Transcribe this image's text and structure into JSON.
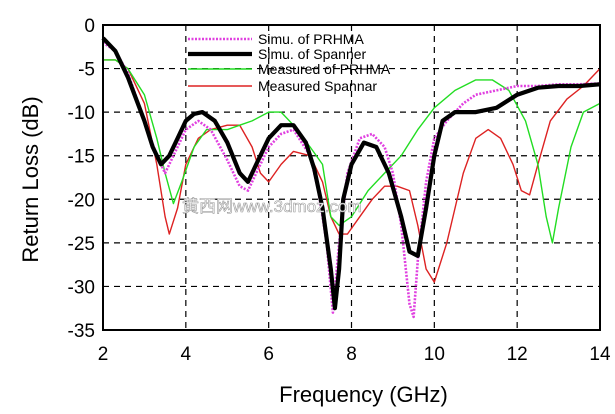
{
  "chart_data": {
    "type": "line",
    "xlabel": "Frequency (GHz)",
    "ylabel": "Return Loss (dB)",
    "xlim": [
      2,
      14
    ],
    "ylim": [
      -35,
      0
    ],
    "xticks": [
      2,
      4,
      6,
      8,
      10,
      12,
      14
    ],
    "yticks": [
      0,
      -5,
      -10,
      -15,
      -20,
      -25,
      -30,
      -35
    ],
    "grid": true,
    "legend_position": "top-center",
    "watermark": "黄西网www.3dmoz.com",
    "series": [
      {
        "name": "Simu. of PRHMA",
        "color": "#e040e0",
        "style": "dotted",
        "x": [
          2.0,
          2.3,
          2.6,
          3.0,
          3.3,
          3.5,
          3.7,
          4.0,
          4.3,
          4.6,
          5.0,
          5.3,
          5.5,
          5.7,
          6.0,
          6.3,
          6.6,
          7.0,
          7.2,
          7.4,
          7.55,
          7.7,
          7.9,
          8.2,
          8.5,
          8.8,
          9.0,
          9.2,
          9.4,
          9.5,
          9.6,
          9.8,
          10.0,
          10.3,
          10.7,
          11.0,
          11.5,
          12.0,
          12.5,
          13.0,
          13.5,
          14.0
        ],
        "y": [
          -2,
          -3,
          -5.5,
          -11,
          -15,
          -17,
          -15,
          -12,
          -11,
          -12,
          -15.5,
          -18.5,
          -19,
          -17,
          -14,
          -12.5,
          -12,
          -15,
          -19,
          -25,
          -33,
          -25,
          -17,
          -13,
          -12.5,
          -14,
          -17,
          -23,
          -32,
          -33.5,
          -27,
          -18,
          -13,
          -11,
          -9,
          -8,
          -7.5,
          -7,
          -7,
          -6.8,
          -6.8,
          -6.7
        ]
      },
      {
        "name": "Simu. of Spanner",
        "color": "#000000",
        "style": "solid",
        "x": [
          2.0,
          2.3,
          2.6,
          3.0,
          3.2,
          3.4,
          3.6,
          3.8,
          4.0,
          4.2,
          4.4,
          4.7,
          5.0,
          5.3,
          5.5,
          5.7,
          6.0,
          6.3,
          6.6,
          6.9,
          7.1,
          7.3,
          7.5,
          7.6,
          7.7,
          7.8,
          8.0,
          8.3,
          8.6,
          8.9,
          9.2,
          9.4,
          9.6,
          9.8,
          10.0,
          10.2,
          10.5,
          11.0,
          11.5,
          12.0,
          12.5,
          13.0,
          13.5,
          14.0
        ],
        "y": [
          -1.5,
          -3,
          -6,
          -11,
          -14,
          -16,
          -15,
          -13,
          -11,
          -10.2,
          -10,
          -11,
          -13.5,
          -17,
          -18,
          -16,
          -13,
          -11.5,
          -11.5,
          -13.5,
          -16.5,
          -21,
          -28,
          -32.5,
          -28,
          -20,
          -16,
          -13.5,
          -14,
          -17,
          -22,
          -26,
          -26.5,
          -21,
          -15,
          -11,
          -10,
          -10,
          -9.5,
          -8,
          -7.2,
          -7,
          -7,
          -6.8
        ]
      },
      {
        "name": "Measured of PRHMA",
        "color": "#22dd22",
        "style": "solid",
        "x": [
          2.0,
          2.3,
          2.6,
          3.0,
          3.3,
          3.5,
          3.7,
          3.9,
          4.2,
          4.5,
          4.8,
          5.0,
          5.3,
          5.6,
          6.0,
          6.3,
          6.6,
          7.0,
          7.3,
          7.5,
          7.7,
          8.0,
          8.4,
          8.8,
          9.2,
          9.6,
          10.0,
          10.5,
          11.0,
          11.4,
          11.8,
          12.2,
          12.5,
          12.7,
          12.85,
          13.0,
          13.3,
          13.6,
          14.0
        ],
        "y": [
          -4,
          -4,
          -5,
          -8,
          -13,
          -17,
          -20.5,
          -18,
          -14,
          -12,
          -12,
          -12,
          -11.5,
          -11,
          -10,
          -10,
          -11.5,
          -14,
          -16,
          -22,
          -23,
          -22,
          -19,
          -17,
          -15,
          -12,
          -9.5,
          -7.5,
          -6.3,
          -6.3,
          -7.5,
          -11,
          -16,
          -22,
          -25,
          -21,
          -14,
          -10,
          -9
        ]
      },
      {
        "name": "Measured Spannar",
        "color": "#dd2222",
        "style": "solid",
        "x": [
          2.0,
          2.3,
          2.6,
          3.0,
          3.3,
          3.5,
          3.6,
          3.8,
          4.0,
          4.3,
          4.6,
          5.0,
          5.3,
          5.6,
          5.8,
          6.0,
          6.3,
          6.6,
          7.0,
          7.3,
          7.5,
          7.7,
          7.9,
          8.2,
          8.5,
          8.8,
          9.1,
          9.4,
          9.6,
          9.8,
          10.0,
          10.3,
          10.7,
          11.0,
          11.3,
          11.6,
          11.9,
          12.1,
          12.3,
          12.5,
          12.8,
          13.2,
          13.6,
          14.0
        ],
        "y": [
          -4,
          -4,
          -5,
          -9,
          -16,
          -22,
          -24,
          -21,
          -16,
          -13,
          -12,
          -11.5,
          -11.5,
          -14,
          -17,
          -18,
          -16,
          -14.5,
          -15,
          -18,
          -22,
          -24,
          -24,
          -22,
          -20,
          -18.5,
          -18.5,
          -19,
          -23,
          -28,
          -29.5,
          -25,
          -17,
          -13,
          -12,
          -13,
          -16,
          -19,
          -19.5,
          -16,
          -11,
          -8.5,
          -7,
          -5
        ]
      }
    ]
  }
}
